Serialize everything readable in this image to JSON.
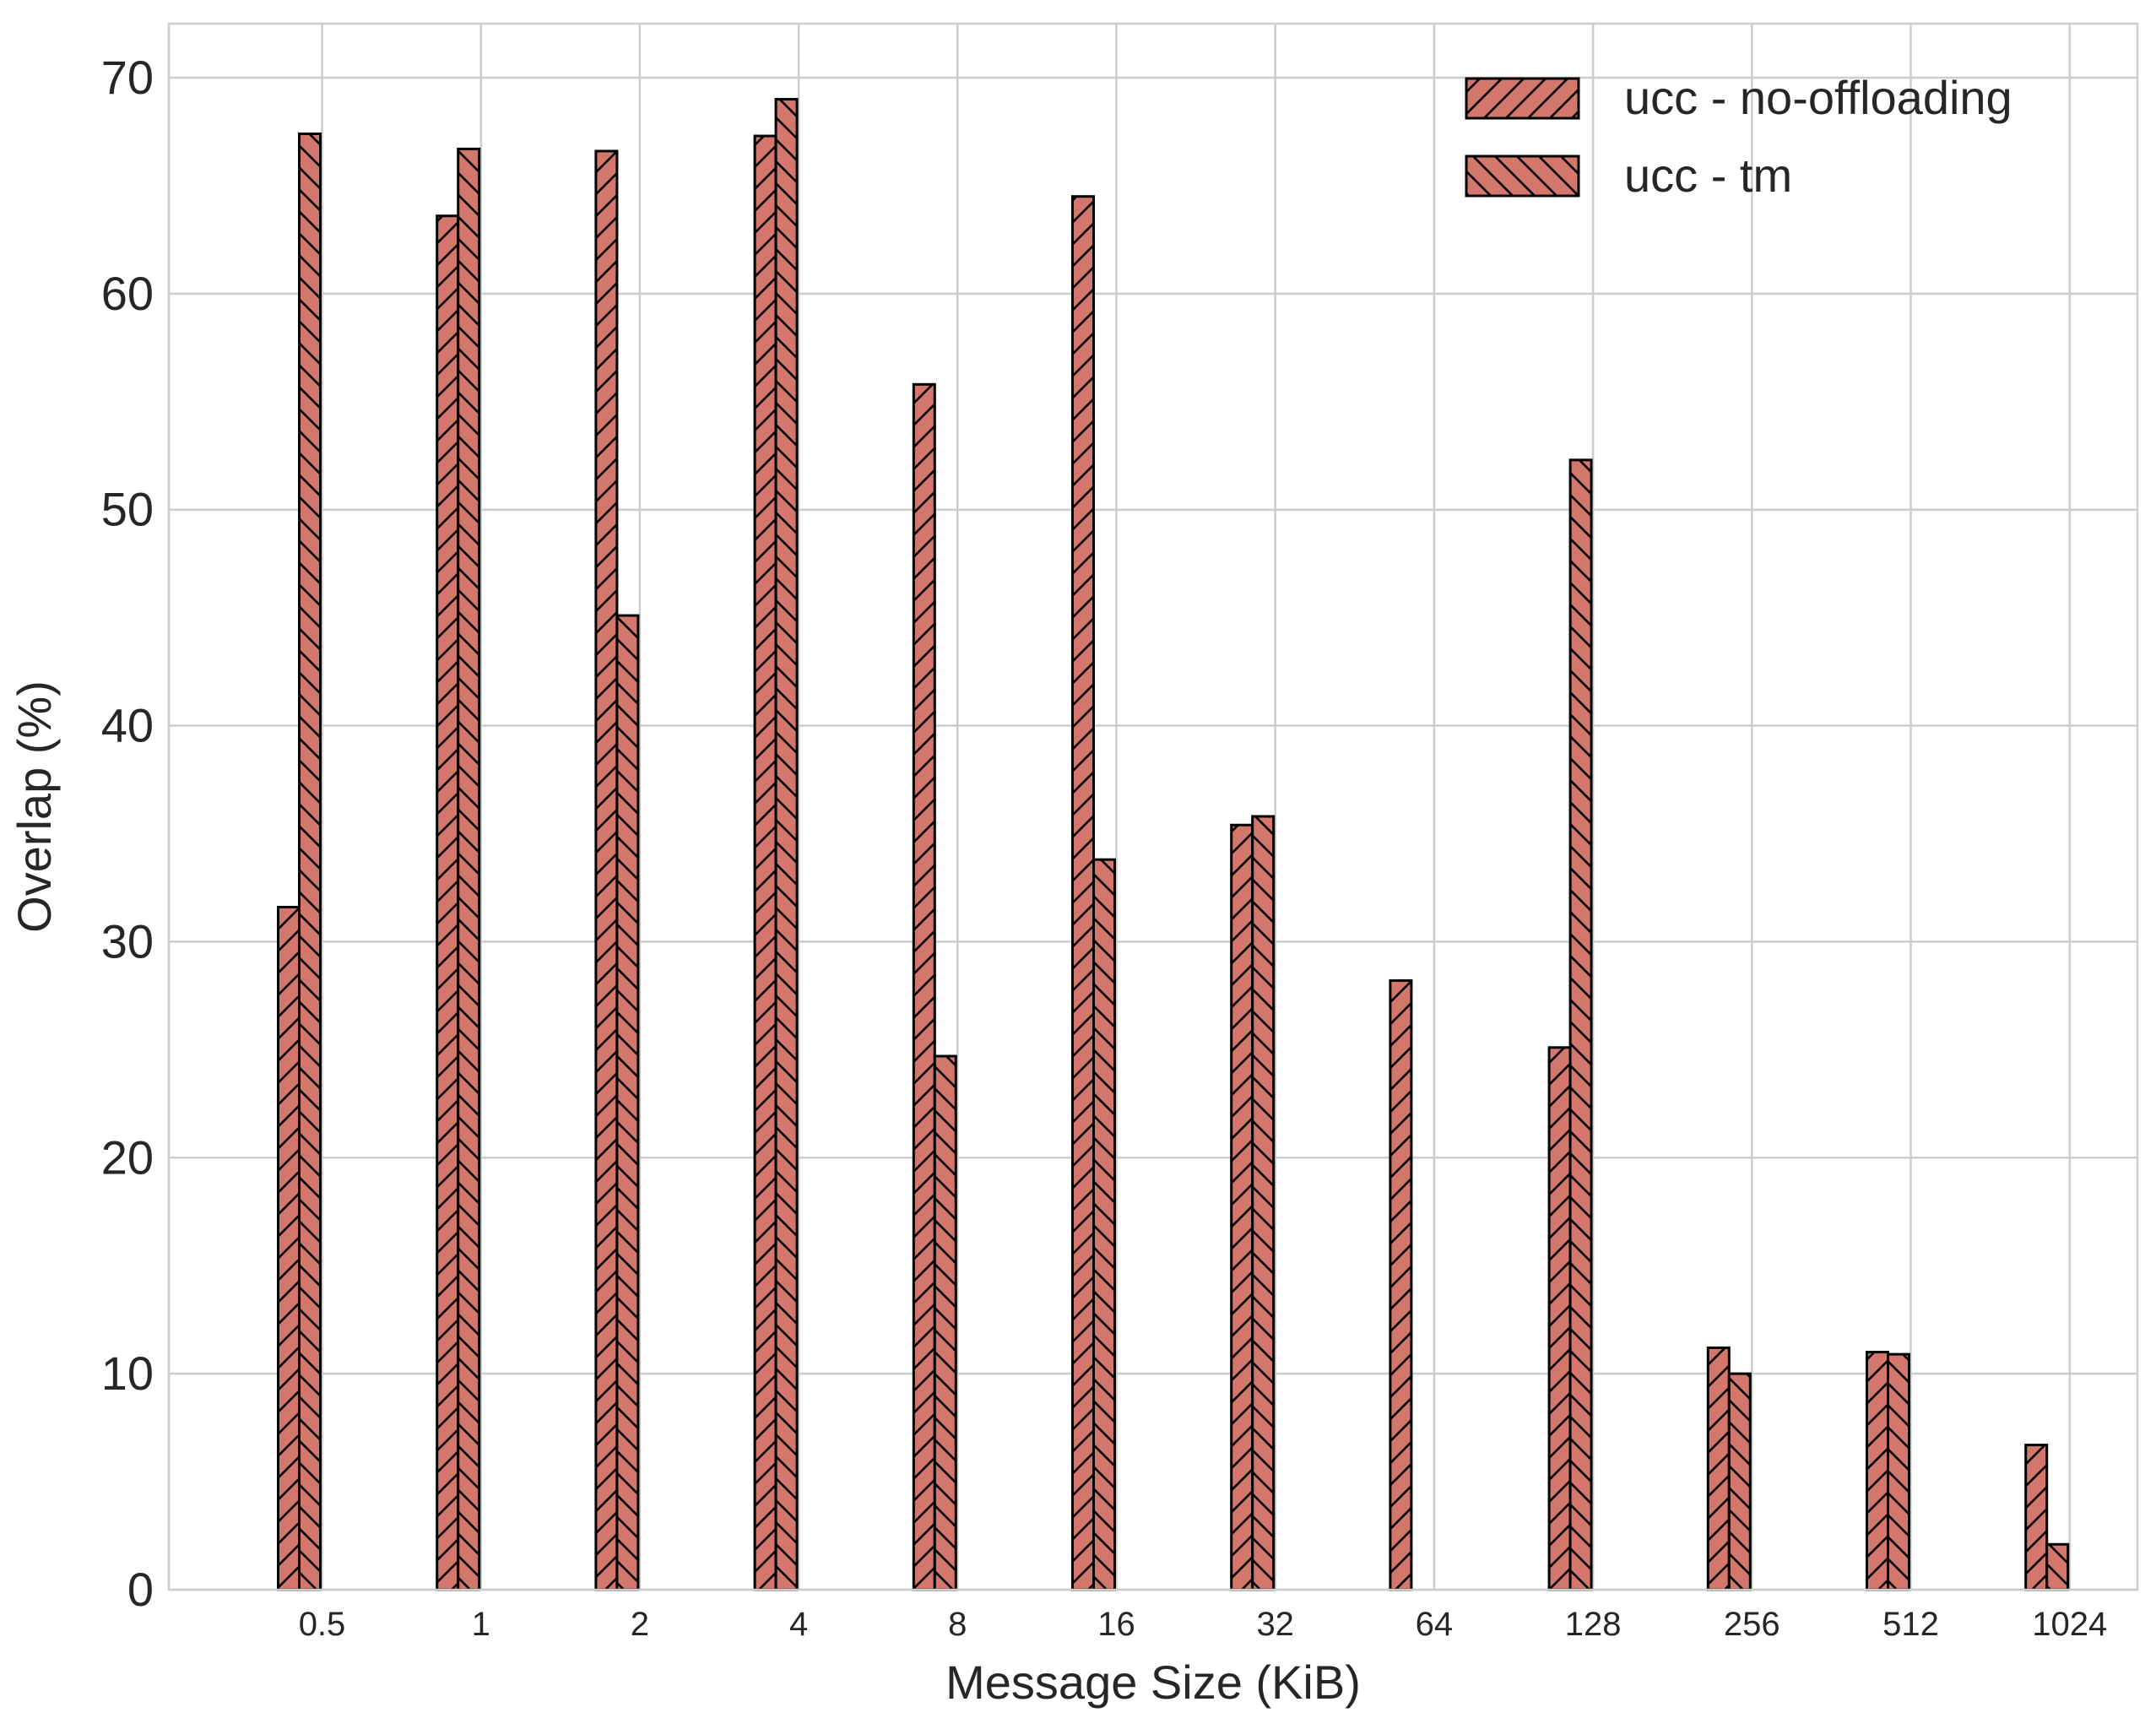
{
  "chart_data": {
    "type": "bar",
    "xlabel": "Message Size (KiB)",
    "ylabel": "Overlap (%)",
    "categories": [
      "0.5",
      "1",
      "2",
      "4",
      "8",
      "16",
      "32",
      "64",
      "128",
      "256",
      "512",
      "1024"
    ],
    "ylim": [
      0,
      72.5
    ],
    "yticks": [
      0,
      10,
      20,
      30,
      40,
      50,
      60,
      70
    ],
    "grid": true,
    "legend_position": "top-right",
    "bar_color": "#d3776d",
    "edge_color": "#000000",
    "series": [
      {
        "name": "ucc - no-offloading",
        "hatch": "forward-diagonal",
        "values": [
          31.6,
          63.6,
          66.6,
          67.3,
          55.8,
          64.5,
          35.4,
          28.2,
          25.1,
          11.2,
          11.0,
          6.7
        ]
      },
      {
        "name": "ucc - tm",
        "hatch": "backward-diagonal",
        "values": [
          67.4,
          66.7,
          45.1,
          69.0,
          24.7,
          33.8,
          35.8,
          null,
          52.3,
          10.0,
          10.9,
          2.1
        ]
      }
    ]
  }
}
